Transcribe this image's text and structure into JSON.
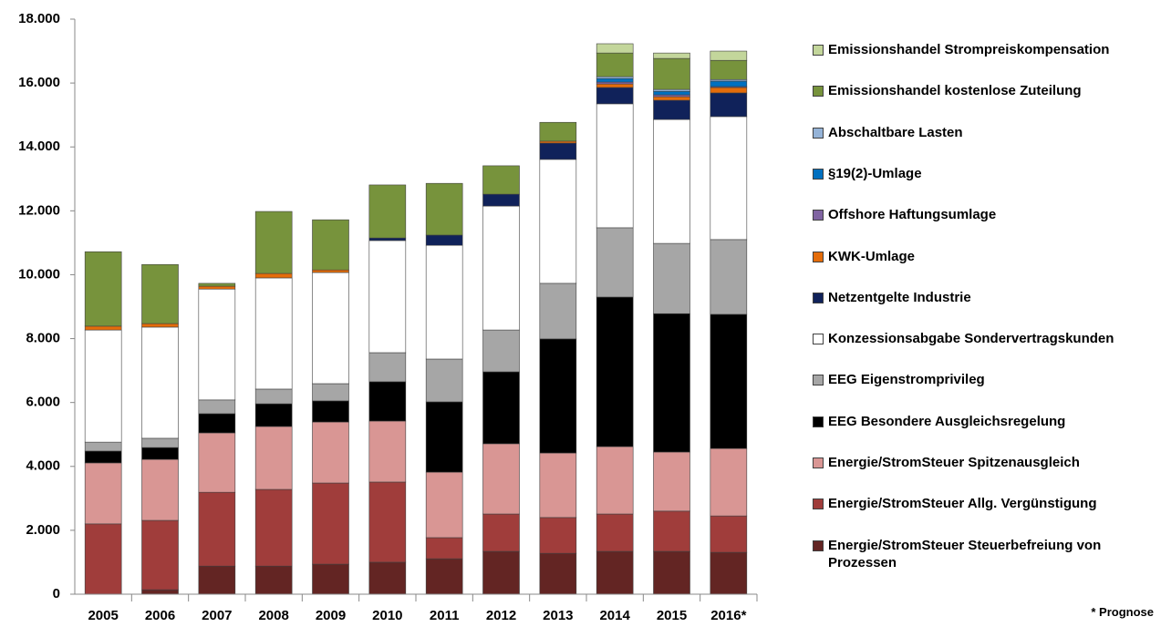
{
  "chart_data": {
    "type": "stacked_bar",
    "categories": [
      "2005",
      "2006",
      "2007",
      "2008",
      "2009",
      "2010",
      "2011",
      "2012",
      "2013",
      "2014",
      "2015",
      "2016*"
    ],
    "series": [
      {
        "name": "Energie/StromSteuer Steuerbefreiung von Prozessen",
        "color": "#632523",
        "values": [
          0,
          140,
          880,
          880,
          940,
          1000,
          1110,
          1340,
          1280,
          1340,
          1340,
          1310
        ]
      },
      {
        "name": "Energie/StromSteuer Allg. Vergünstigung",
        "color": "#a03d3b",
        "values": [
          2200,
          2170,
          2310,
          2400,
          2540,
          2510,
          660,
          1170,
          1120,
          1170,
          1260,
          1140
        ]
      },
      {
        "name": "Energie/StromSteuer Spitzenausgleich",
        "color": "#d99694",
        "values": [
          1910,
          1910,
          1860,
          1970,
          1910,
          1910,
          2050,
          2200,
          2020,
          2110,
          1850,
          2110
        ]
      },
      {
        "name": "EEG Besondere Ausgleichsregelung",
        "color": "#000000",
        "values": [
          370,
          370,
          600,
          710,
          660,
          1230,
          2200,
          2250,
          3570,
          4680,
          4330,
          4200
        ]
      },
      {
        "name": "EEG Eigenstromprivileg",
        "color": "#a6a6a6",
        "values": [
          280,
          290,
          430,
          460,
          540,
          910,
          1340,
          1310,
          1740,
          2170,
          2200,
          2340
        ]
      },
      {
        "name": "Konzessionsabgabe Sondervertragskunden",
        "color": "#ffffff",
        "values": [
          3510,
          3480,
          3470,
          3480,
          3480,
          3510,
          3560,
          3880,
          3880,
          3880,
          3880,
          3850
        ]
      },
      {
        "name": "Netzentgelte Industrie",
        "color": "#10225a",
        "values": [
          0,
          0,
          0,
          0,
          0,
          80,
          320,
          370,
          510,
          510,
          600,
          740
        ]
      },
      {
        "name": "KWK-Umlage",
        "color": "#e46c0a",
        "values": [
          120,
          110,
          90,
          140,
          80,
          0,
          0,
          0,
          60,
          110,
          110,
          170
        ]
      },
      {
        "name": "Offshore Haftungsumlage",
        "color": "#8064a2",
        "values": [
          0,
          0,
          0,
          0,
          0,
          0,
          0,
          0,
          0,
          60,
          60,
          30
        ]
      },
      {
        "name": "§19(2)-Umlage",
        "color": "#0070c0",
        "values": [
          0,
          0,
          0,
          0,
          0,
          0,
          0,
          0,
          0,
          110,
          110,
          170
        ]
      },
      {
        "name": "Abschaltbare Lasten",
        "color": "#95b3d7",
        "values": [
          0,
          0,
          0,
          0,
          0,
          0,
          0,
          0,
          0,
          60,
          60,
          50
        ]
      },
      {
        "name": "Emissionshandel kostenlose Zuteilung",
        "color": "#77933c",
        "values": [
          2330,
          1850,
          90,
          1940,
          1570,
          1660,
          1620,
          890,
          590,
          740,
          970,
          600
        ]
      },
      {
        "name": "Emissionshandel Strompreiskompensation",
        "color": "#c3d69b",
        "values": [
          0,
          0,
          0,
          0,
          0,
          0,
          0,
          0,
          0,
          290,
          170,
          290
        ]
      }
    ],
    "ylim": [
      0,
      18000
    ],
    "yticks": [
      0,
      {
        "value": 2000,
        "label": "2.000"
      },
      {
        "value": 4000,
        "label": "4.000"
      },
      {
        "value": 6000,
        "label": "6.000"
      },
      {
        "value": 8000,
        "label": "8.000"
      },
      {
        "value": 10000,
        "label": "10.000"
      },
      {
        "value": 12000,
        "label": "12.000"
      },
      {
        "value": 14000,
        "label": "14.000"
      },
      {
        "value": 16000,
        "label": "16.000"
      },
      {
        "value": 18000,
        "label": "18.000"
      }
    ],
    "annotation": "* Prognose",
    "legend": "right"
  }
}
